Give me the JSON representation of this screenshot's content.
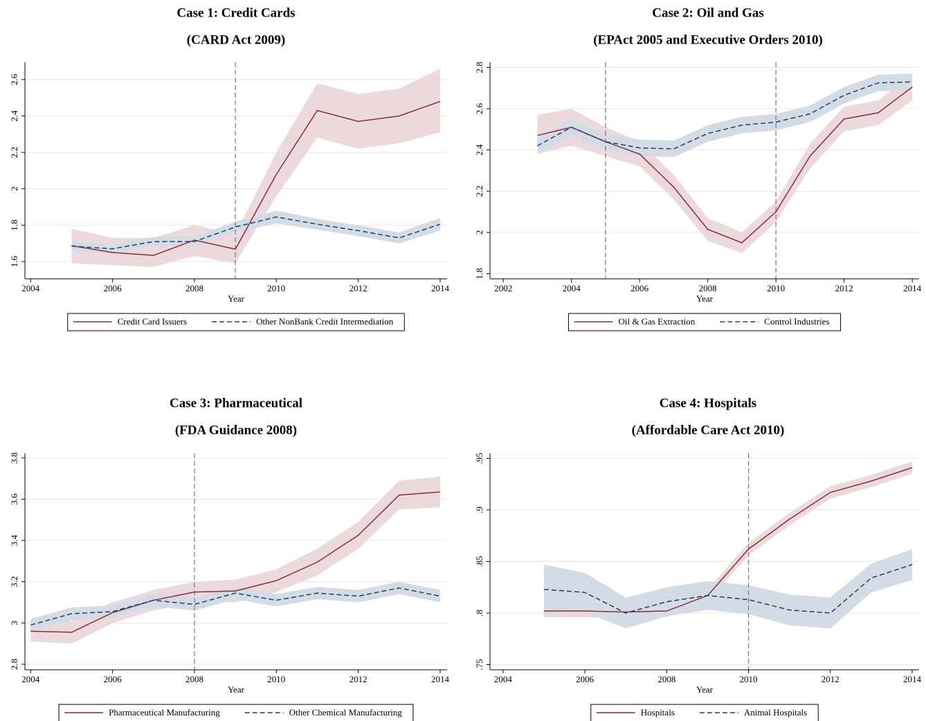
{
  "chart_data": [
    {
      "type": "line",
      "title": "Case 1: Credit Cards",
      "subtitle": "(CARD Act 2009)",
      "x_label": "Year",
      "xlim": [
        2003.86,
        2014.17
      ],
      "xticks": [
        2004,
        2006,
        2008,
        2010,
        2012,
        2014
      ],
      "ylim": [
        1.505,
        2.695
      ],
      "yticks": [
        1.6,
        1.8,
        2,
        2.2,
        2.4,
        2.6
      ],
      "grid": true,
      "events": [
        2009
      ],
      "series": [
        {
          "name": "Credit Card Issuers",
          "color": "#8c2d35",
          "band_color": "#ecd9db",
          "dashed": false,
          "x": [
            2005,
            2006,
            2007,
            2008,
            2009,
            2010,
            2011,
            2012,
            2013,
            2014
          ],
          "values": [
            1.687,
            1.65,
            1.634,
            1.718,
            1.668,
            2.079,
            2.43,
            2.37,
            2.4,
            2.48
          ],
          "lower": [
            1.59,
            1.58,
            1.57,
            1.63,
            1.59,
            1.96,
            2.28,
            2.22,
            2.25,
            2.31
          ],
          "upper": [
            1.78,
            1.73,
            1.73,
            1.8,
            1.75,
            2.2,
            2.58,
            2.52,
            2.55,
            2.66
          ]
        },
        {
          "name": "Other NonBank Credit Intermediation",
          "color": "#1f3e66",
          "band_color": "#d3dbe6",
          "dashed": true,
          "x": [
            2005,
            2006,
            2007,
            2008,
            2009,
            2010,
            2011,
            2012,
            2013,
            2014
          ],
          "values": [
            1.685,
            1.67,
            1.71,
            1.71,
            1.79,
            1.845,
            1.805,
            1.77,
            1.73,
            1.805
          ],
          "lower": [
            1.66,
            1.645,
            1.685,
            1.685,
            1.76,
            1.81,
            1.775,
            1.74,
            1.7,
            1.77
          ],
          "upper": [
            1.71,
            1.695,
            1.735,
            1.735,
            1.82,
            1.88,
            1.835,
            1.8,
            1.76,
            1.84
          ]
        }
      ]
    },
    {
      "type": "line",
      "title": "Case 2: Oil and Gas",
      "subtitle": "(EPAct 2005 and Executive Orders 2010)",
      "x_label": "Year",
      "xlim": [
        2001.61,
        2014.2
      ],
      "xticks": [
        2002,
        2004,
        2006,
        2008,
        2010,
        2012,
        2014
      ],
      "ylim": [
        1.775,
        2.825
      ],
      "yticks": [
        1.8,
        2,
        2.2,
        2.4,
        2.6,
        2.8
      ],
      "grid": true,
      "events": [
        2005,
        2010
      ],
      "series": [
        {
          "name": "Oil & Gas Extraction",
          "color": "#8c2d35",
          "band_color": "#ecd9db",
          "dashed": false,
          "x": [
            2003,
            2004,
            2005,
            2006,
            2007,
            2008,
            2009,
            2010,
            2011,
            2012,
            2013,
            2014
          ],
          "values": [
            2.47,
            2.51,
            2.44,
            2.38,
            2.22,
            2.015,
            1.95,
            2.1,
            2.37,
            2.55,
            2.58,
            2.705
          ],
          "lower": [
            2.38,
            2.42,
            2.37,
            2.32,
            2.16,
            1.96,
            1.9,
            2.05,
            2.31,
            2.49,
            2.52,
            2.64
          ],
          "upper": [
            2.57,
            2.6,
            2.51,
            2.44,
            2.28,
            2.07,
            2.0,
            2.15,
            2.43,
            2.61,
            2.64,
            2.77
          ]
        },
        {
          "name": "Control Industries",
          "color": "#1f3e66",
          "band_color": "#d3dbe6",
          "dashed": true,
          "x": [
            2003,
            2004,
            2005,
            2006,
            2007,
            2008,
            2009,
            2010,
            2011,
            2012,
            2013,
            2014
          ],
          "values": [
            2.42,
            2.51,
            2.44,
            2.41,
            2.405,
            2.48,
            2.52,
            2.535,
            2.575,
            2.665,
            2.725,
            2.73
          ],
          "lower": [
            2.38,
            2.47,
            2.4,
            2.37,
            2.365,
            2.44,
            2.48,
            2.495,
            2.535,
            2.625,
            2.685,
            2.69
          ],
          "upper": [
            2.46,
            2.55,
            2.48,
            2.45,
            2.445,
            2.52,
            2.56,
            2.575,
            2.615,
            2.705,
            2.765,
            2.77
          ]
        }
      ]
    },
    {
      "type": "line",
      "title": "Case 3: Pharmaceutical",
      "subtitle": "(FDA Guidance 2008)",
      "x_label": "Year",
      "xlim": [
        2003.86,
        2014.17
      ],
      "xticks": [
        2004,
        2006,
        2008,
        2010,
        2012,
        2014
      ],
      "ylim": [
        2.773,
        3.823
      ],
      "yticks": [
        2.8,
        3,
        3.2,
        3.4,
        3.6,
        3.8
      ],
      "grid": true,
      "events": [
        2008
      ],
      "series": [
        {
          "name": "Pharmaceutical Manufacturing",
          "color": "#8c2d35",
          "band_color": "#ecd9db",
          "dashed": false,
          "x": [
            2004,
            2005,
            2006,
            2007,
            2008,
            2009,
            2010,
            2011,
            2012,
            2013,
            2014
          ],
          "values": [
            2.96,
            2.955,
            3.05,
            3.11,
            3.15,
            3.155,
            3.205,
            3.295,
            3.425,
            3.62,
            3.635
          ],
          "lower": [
            2.91,
            2.9,
            3.0,
            3.06,
            3.1,
            3.1,
            3.15,
            3.23,
            3.36,
            3.55,
            3.56
          ],
          "upper": [
            3.01,
            3.01,
            3.1,
            3.16,
            3.2,
            3.21,
            3.26,
            3.36,
            3.49,
            3.69,
            3.71
          ]
        },
        {
          "name": "Other Chemical Manufacturing",
          "color": "#1f3e66",
          "band_color": "#d3dbe6",
          "dashed": true,
          "x": [
            2004,
            2005,
            2006,
            2007,
            2008,
            2009,
            2010,
            2011,
            2012,
            2013,
            2014
          ],
          "values": [
            2.99,
            3.045,
            3.055,
            3.11,
            3.09,
            3.145,
            3.11,
            3.145,
            3.13,
            3.17,
            3.13
          ],
          "lower": [
            2.96,
            3.015,
            3.025,
            3.08,
            3.06,
            3.115,
            3.08,
            3.115,
            3.1,
            3.14,
            3.1
          ],
          "upper": [
            3.02,
            3.075,
            3.085,
            3.14,
            3.12,
            3.175,
            3.14,
            3.175,
            3.16,
            3.2,
            3.16
          ]
        }
      ]
    },
    {
      "type": "line",
      "title": "Case 4: Hospitals",
      "subtitle": "(Affordable Care Act 2010)",
      "x_label": "Year",
      "xlim": [
        2003.68,
        2014.17
      ],
      "xticks": [
        2004,
        2006,
        2008,
        2010,
        2012,
        2014
      ],
      "ylim": [
        0.745,
        0.955
      ],
      "yticks": [
        {
          "value": 0.75,
          "label": ".75"
        },
        {
          "value": 0.8,
          "label": ".8"
        },
        {
          "value": 0.85,
          "label": ".85"
        },
        {
          "value": 0.9,
          "label": ".9"
        },
        {
          "value": 0.95,
          "label": ".95"
        }
      ],
      "grid": true,
      "events": [
        2010
      ],
      "series": [
        {
          "name": "Hospitals",
          "color": "#8c2d35",
          "band_color": "#ecd9db",
          "dashed": false,
          "x": [
            2005,
            2006,
            2007,
            2008,
            2009,
            2010,
            2011,
            2012,
            2013,
            2014
          ],
          "values": [
            0.802,
            0.802,
            0.801,
            0.802,
            0.817,
            0.862,
            0.891,
            0.917,
            0.928,
            0.941
          ],
          "lower": [
            0.796,
            0.796,
            0.795,
            0.796,
            0.811,
            0.856,
            0.885,
            0.911,
            0.922,
            0.935
          ],
          "upper": [
            0.808,
            0.808,
            0.807,
            0.808,
            0.823,
            0.868,
            0.897,
            0.923,
            0.934,
            0.947
          ]
        },
        {
          "name": "Animal Hospitals",
          "color": "#1f3e66",
          "band_color": "#d3dbe6",
          "dashed": true,
          "x": [
            2005,
            2006,
            2007,
            2008,
            2009,
            2010,
            2011,
            2012,
            2013,
            2014
          ],
          "values": [
            0.823,
            0.82,
            0.8,
            0.811,
            0.817,
            0.813,
            0.803,
            0.8,
            0.834,
            0.847
          ],
          "lower": [
            0.799,
            0.801,
            0.785,
            0.797,
            0.803,
            0.799,
            0.788,
            0.785,
            0.82,
            0.832
          ],
          "upper": [
            0.847,
            0.839,
            0.815,
            0.825,
            0.831,
            0.827,
            0.818,
            0.815,
            0.848,
            0.862
          ]
        }
      ]
    }
  ]
}
